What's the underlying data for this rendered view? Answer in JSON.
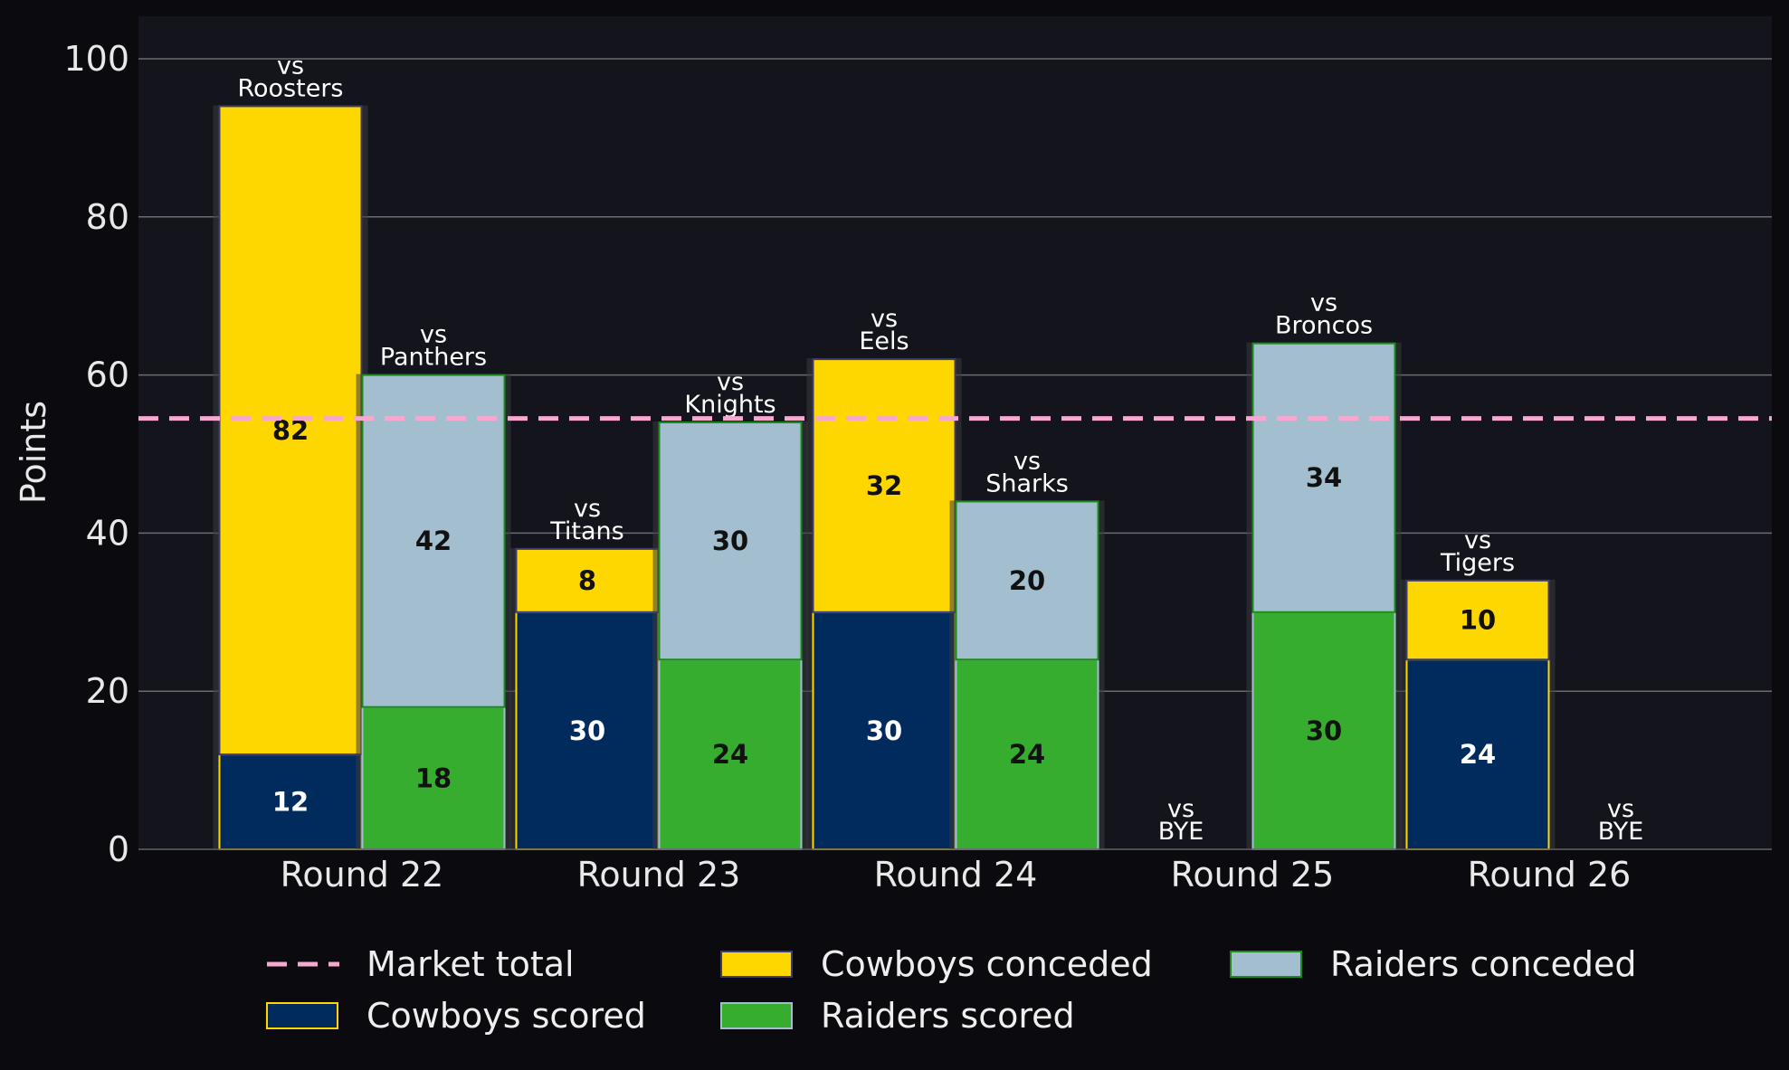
{
  "chart_data": {
    "type": "bar",
    "stacked": true,
    "ylabel": "Points",
    "xlabel": "",
    "ylim": [
      0,
      105
    ],
    "yticks": [
      "0",
      "20",
      "40",
      "60",
      "80",
      "100"
    ],
    "grid": true,
    "legend_placement": "bottom",
    "categories": [
      "Round 22",
      "Round 23",
      "Round 24",
      "Round 25",
      "Round 26"
    ],
    "teams": [
      {
        "name": "Cowboys",
        "opponents": [
          "vs\nRoosters",
          "vs\nTitans",
          "vs\nEels",
          "vs\nBYE",
          "vs\nTigers"
        ],
        "scored": [
          12,
          30,
          30,
          0,
          24
        ],
        "conceded": [
          82,
          8,
          32,
          0,
          10
        ]
      },
      {
        "name": "Raiders",
        "opponents": [
          "vs\nPanthers",
          "vs\nKnights",
          "vs\nSharks",
          "vs\nBroncos",
          "vs\nBYE"
        ],
        "scored": [
          18,
          24,
          24,
          30,
          0
        ],
        "conceded": [
          42,
          30,
          20,
          34,
          0
        ]
      }
    ],
    "market_total": 54.5,
    "legend": [
      {
        "key": "market",
        "label": "Market total"
      },
      {
        "key": "cowboys_conceded",
        "label": "Cowboys conceded"
      },
      {
        "key": "raiders_conceded",
        "label": "Raiders conceded"
      },
      {
        "key": "cowboys_scored",
        "label": "Cowboys scored"
      },
      {
        "key": "raiders_scored",
        "label": "Raiders scored"
      }
    ],
    "colors": {
      "cowboys_scored": "#002b5c",
      "cowboys_scored_edge": "#ffd700",
      "cowboys_conceded": "#ffd700",
      "cowboys_conceded_edge": "#3c3c6e",
      "raiders_scored": "#37ad30",
      "raiders_scored_edge": "#a3bfcf",
      "raiders_conceded": "#a3bfcf",
      "raiders_conceded_edge": "#1a8a1a",
      "market": "#f7a8d0",
      "plot_bg": "#13141c",
      "page_bg": "#0b0b0f",
      "grid": "#6b6b70",
      "value_dark": "#111111",
      "value_light": "#ffffff"
    }
  }
}
